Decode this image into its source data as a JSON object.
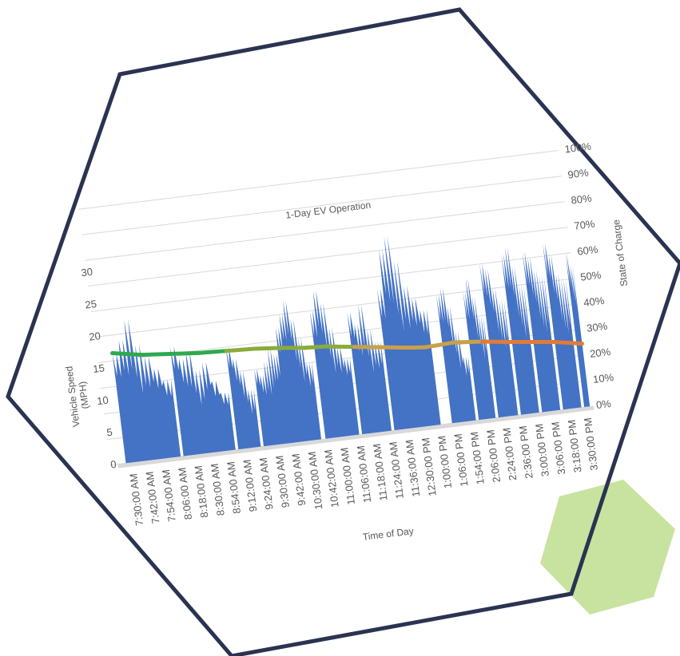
{
  "chart_data": {
    "type": "area",
    "title": "1-Day EV Operation",
    "xlabel": "Time of Day",
    "ylabel": "Vehicle Speed\n(MPH)",
    "y2label": "State of Charge",
    "ylim": [
      0,
      30
    ],
    "y2lim": [
      0,
      1
    ],
    "yticks": [
      "0",
      "5",
      "10",
      "15",
      "20",
      "25",
      "30"
    ],
    "y2ticks": [
      "0%",
      "10%",
      "20%",
      "30%",
      "40%",
      "50%",
      "60%",
      "70%",
      "80%",
      "90%",
      "100%"
    ],
    "categories": [
      "7:30:00 AM",
      "7:42:00 AM",
      "7:54:00 AM",
      "8:06:00 AM",
      "8:18:00 AM",
      "8:30:00 AM",
      "8:54:00 AM",
      "9:12:00 AM",
      "9:24:00 AM",
      "9:30:00 AM",
      "9:42:00 AM",
      "10:30:00 AM",
      "10:42:00 AM",
      "11:00:00 AM",
      "11:06:00 AM",
      "11:18:00 AM",
      "11:24:00 AM",
      "11:36:00 AM",
      "12:30:00 PM",
      "1:00:00 PM",
      "1:06:00 PM",
      "1:54:00 PM",
      "2:06:00 PM",
      "2:24:00 PM",
      "2:36:00 PM",
      "3:00:00 PM",
      "3:06:00 PM",
      "3:18:00 PM",
      "3:30:00 PM"
    ],
    "grid": true,
    "series": [
      {
        "kind": "area",
        "axis": "left",
        "color": "#4472c4",
        "segments": [
          {
            "start": 0.0,
            "end": 3.9,
            "peaks": [
              17,
              19,
              22,
              18,
              16,
              14,
              12
            ]
          },
          {
            "start": 4.1,
            "end": 7.8,
            "peaks": [
              17,
              15,
              16,
              13,
              14,
              11,
              9
            ]
          },
          {
            "start": 8.0,
            "end": 9.6,
            "peaks": [
              16,
              14,
              12,
              9
            ]
          },
          {
            "start": 9.8,
            "end": 13.9,
            "peaks": [
              12,
              11,
              13,
              15,
              14,
              18,
              20,
              22,
              19,
              16,
              12
            ]
          },
          {
            "start": 14.2,
            "end": 16.6,
            "peaks": [
              20,
              23,
              21,
              17,
              14,
              12
            ]
          },
          {
            "start": 16.8,
            "end": 18.9,
            "peaks": [
              19,
              17,
              20,
              16,
              14
            ]
          },
          {
            "start": 19.1,
            "end": 22.4,
            "peaks": [
              22,
              28,
              30,
              26,
              22,
              20,
              18
            ]
          },
          {
            "start": 23.2,
            "end": 24.9,
            "peaks": [
              20,
              21,
              18,
              14,
              10
            ]
          },
          {
            "start": 25.1,
            "end": 26.3,
            "peaks": [
              20,
              22,
              19,
              16
            ]
          },
          {
            "start": 26.5,
            "end": 27.9,
            "peaks": [
              24,
              23,
              20,
              18
            ]
          },
          {
            "start": 28.1,
            "end": 29.4,
            "peaks": [
              25,
              26,
              23,
              20
            ]
          },
          {
            "start": 29.6,
            "end": 30.9,
            "peaks": [
              25,
              24,
              22,
              21
            ]
          },
          {
            "start": 31.1,
            "end": 32.4,
            "peaks": [
              26,
              24,
              21,
              20
            ]
          },
          {
            "start": 32.6,
            "end": 33.0,
            "peaks": [
              24,
              22
            ]
          }
        ]
      },
      {
        "kind": "line",
        "axis": "right",
        "x": [
          0,
          1,
          2,
          4,
          6,
          8,
          10,
          12,
          13.5,
          15,
          17,
          19,
          21,
          22,
          24,
          26,
          28,
          29.5,
          31,
          33
        ],
        "values": [
          0.43,
          0.42,
          0.41,
          0.4,
          0.39,
          0.385,
          0.38,
          0.37,
          0.36,
          0.355,
          0.34,
          0.325,
          0.31,
          0.305,
          0.31,
          0.3,
          0.285,
          0.275,
          0.265,
          0.245
        ],
        "colors": [
          "#2fa84f",
          "#8bab3a",
          "#c9a04a",
          "#e07b38"
        ]
      }
    ]
  },
  "decor": {
    "hexagon_color": "#2b3352",
    "accent_hexagon_color": "#a9d46c"
  }
}
